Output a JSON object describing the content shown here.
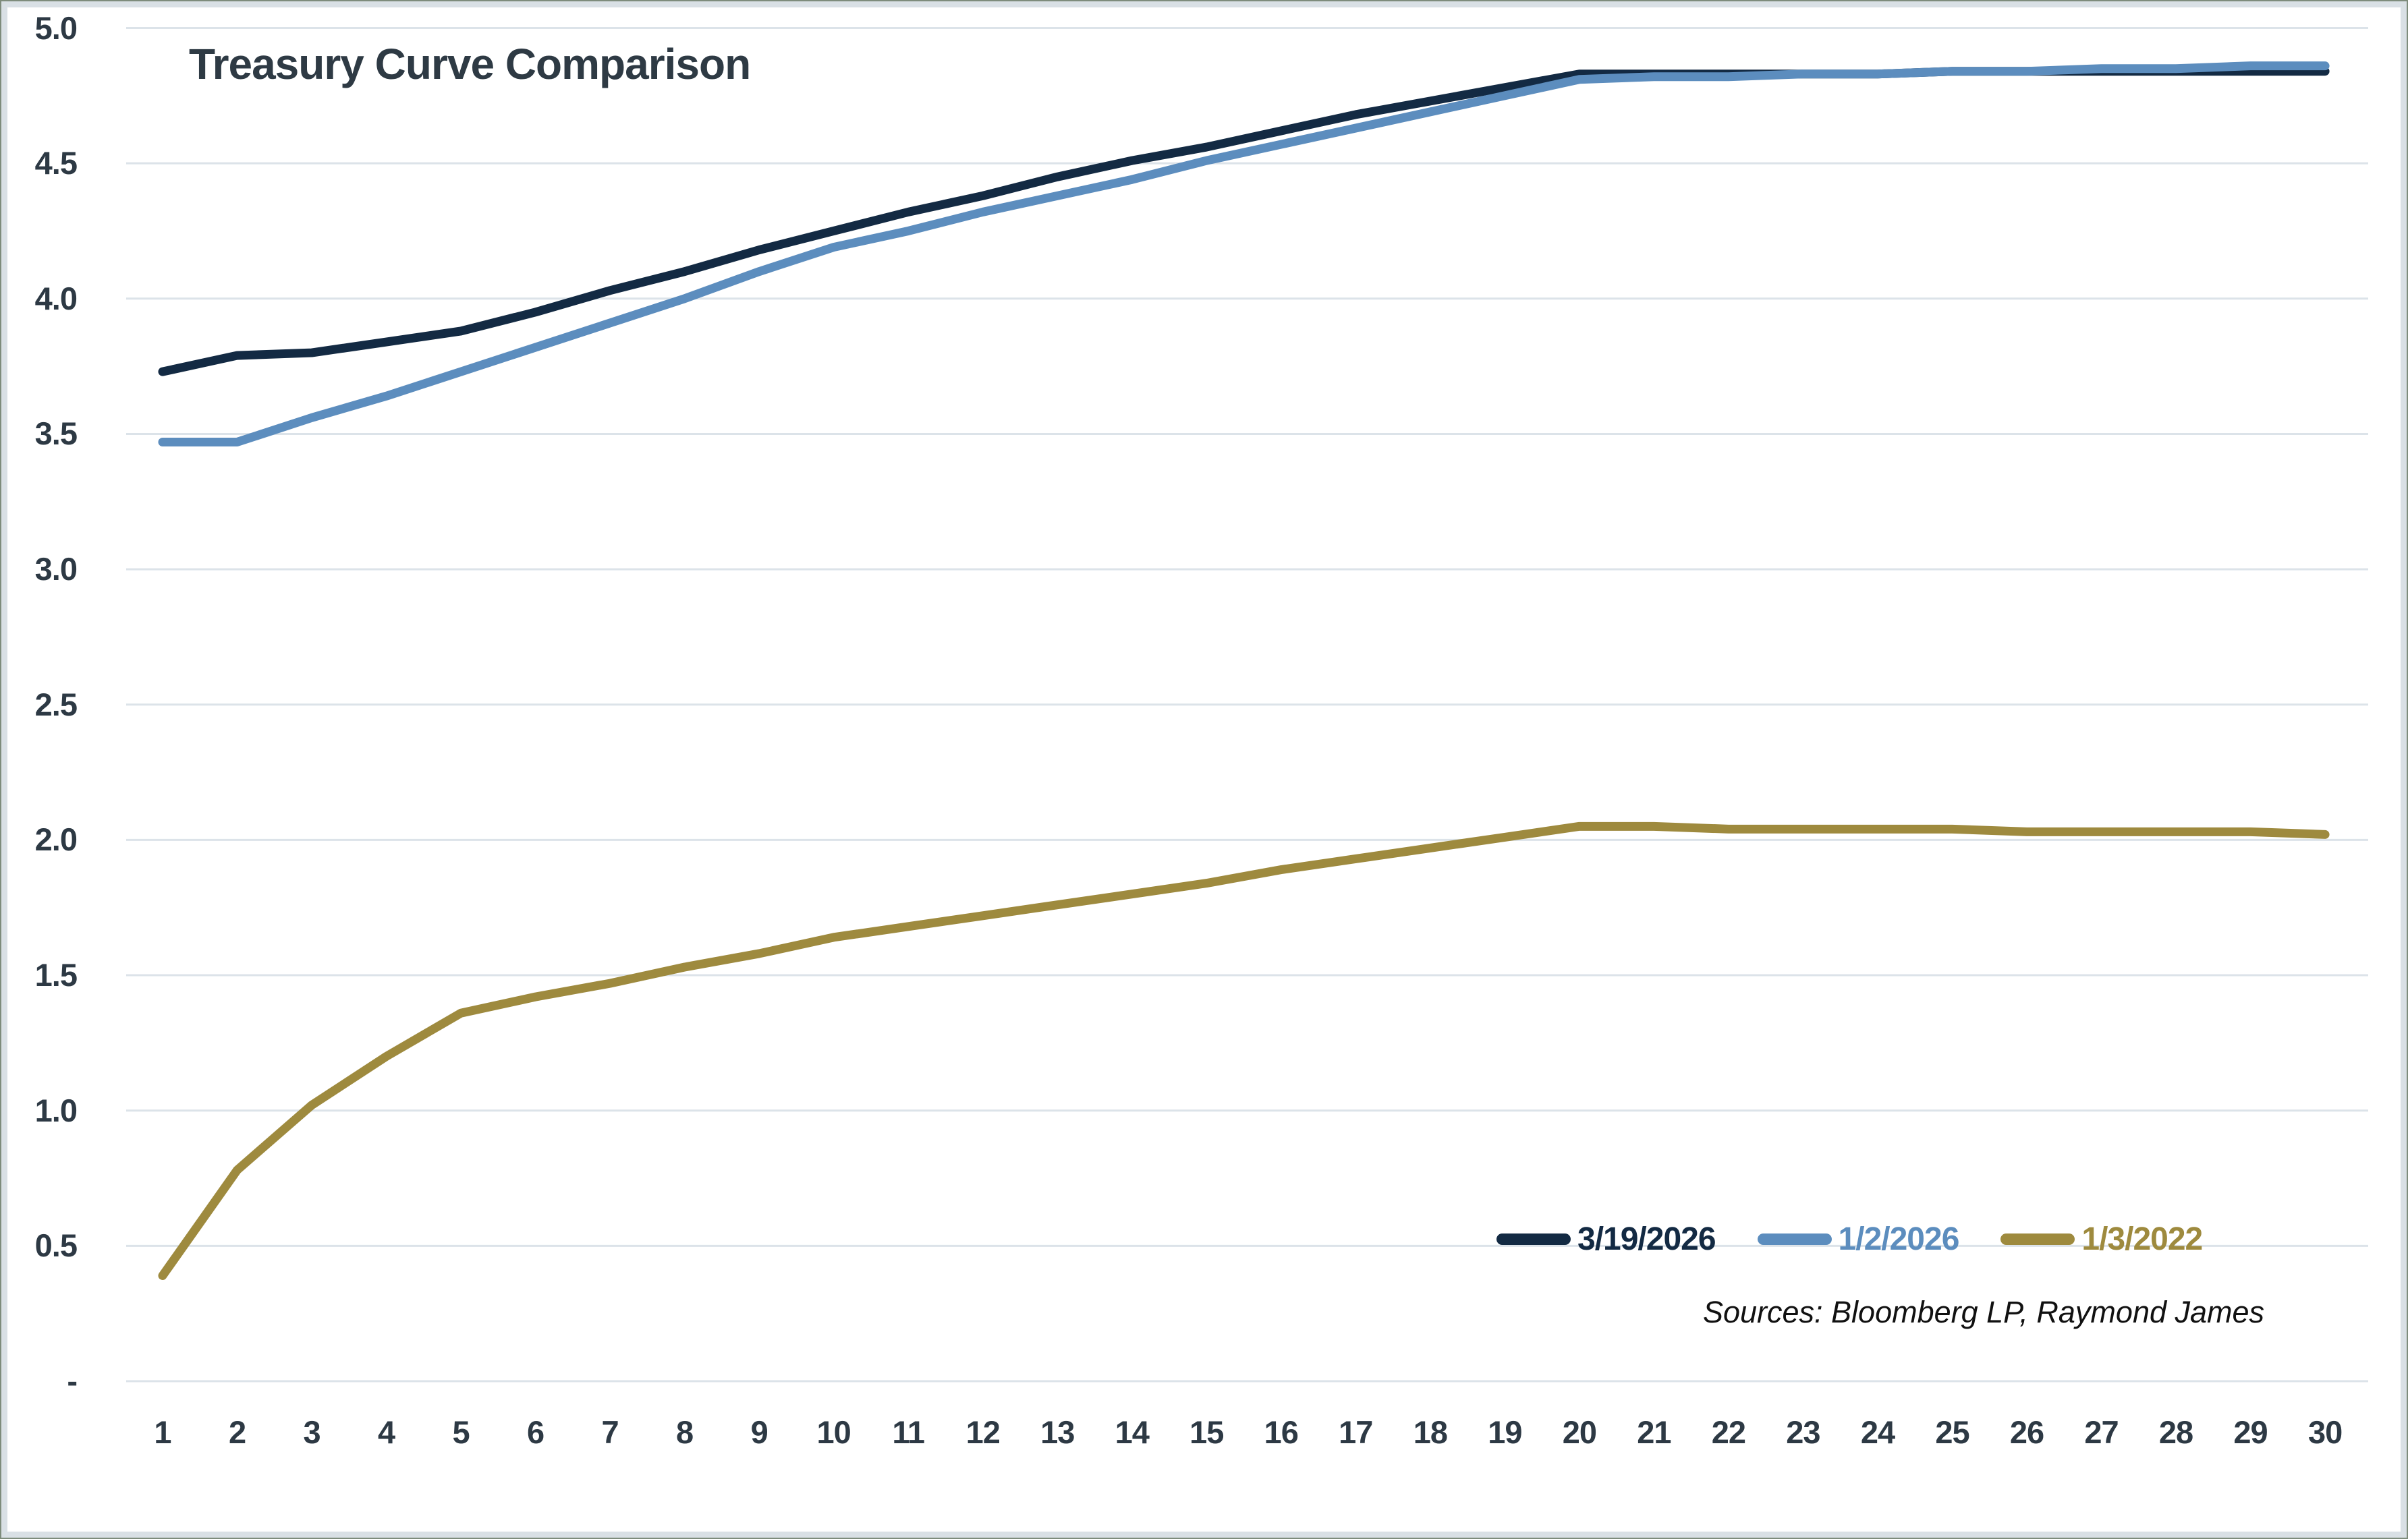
{
  "title": "Treasury Curve Comparison",
  "source_note": "Sources: Bloomberg LP, Raymond James",
  "style": {
    "title_color": "#2e3a44",
    "axis_text_color": "#2d3944",
    "gridline_color": "#dce3e9",
    "frame_inner_color": "#d9e0e5",
    "frame_outer_color": "#7e8c7c",
    "background": "#ffffff"
  },
  "chart_data": {
    "type": "line",
    "title": "Treasury Curve Comparison",
    "xlabel": "",
    "ylabel": "",
    "grid": true,
    "legend_position": "bottom-right",
    "ylim": [
      0,
      5
    ],
    "ytick_step": 0.5,
    "ytick_labels_top_down": [
      "5.0",
      "4.5",
      "4.0",
      "3.5",
      "3.0",
      "2.5",
      "2.0",
      "1.5",
      "1.0",
      "0.5",
      "-"
    ],
    "x": [
      1,
      2,
      3,
      4,
      5,
      6,
      7,
      8,
      9,
      10,
      11,
      12,
      13,
      14,
      15,
      16,
      17,
      18,
      19,
      20,
      21,
      22,
      23,
      24,
      25,
      26,
      27,
      28,
      29,
      30
    ],
    "series": [
      {
        "name": "3/19/2026",
        "color": "#132a43",
        "values": [
          3.73,
          3.79,
          3.8,
          3.84,
          3.88,
          3.95,
          4.03,
          4.1,
          4.18,
          4.25,
          4.32,
          4.38,
          4.45,
          4.51,
          4.56,
          4.62,
          4.68,
          4.73,
          4.78,
          4.83,
          4.83,
          4.83,
          4.83,
          4.83,
          4.84,
          4.84,
          4.84,
          4.84,
          4.84,
          4.84
        ]
      },
      {
        "name": "1/2/2026",
        "color": "#5c8dbe",
        "values": [
          3.47,
          3.47,
          3.56,
          3.64,
          3.73,
          3.82,
          3.91,
          4.0,
          4.1,
          4.19,
          4.25,
          4.32,
          4.38,
          4.44,
          4.51,
          4.57,
          4.63,
          4.69,
          4.75,
          4.81,
          4.82,
          4.82,
          4.83,
          4.83,
          4.84,
          4.84,
          4.85,
          4.85,
          4.86,
          4.86
        ]
      },
      {
        "name": "1/3/2022",
        "color": "#9e8a3e",
        "values": [
          0.39,
          0.78,
          1.02,
          1.2,
          1.36,
          1.42,
          1.47,
          1.53,
          1.58,
          1.64,
          1.68,
          1.72,
          1.76,
          1.8,
          1.84,
          1.89,
          1.93,
          1.97,
          2.01,
          2.05,
          2.05,
          2.04,
          2.04,
          2.04,
          2.04,
          2.03,
          2.03,
          2.03,
          2.03,
          2.02
        ]
      }
    ]
  }
}
